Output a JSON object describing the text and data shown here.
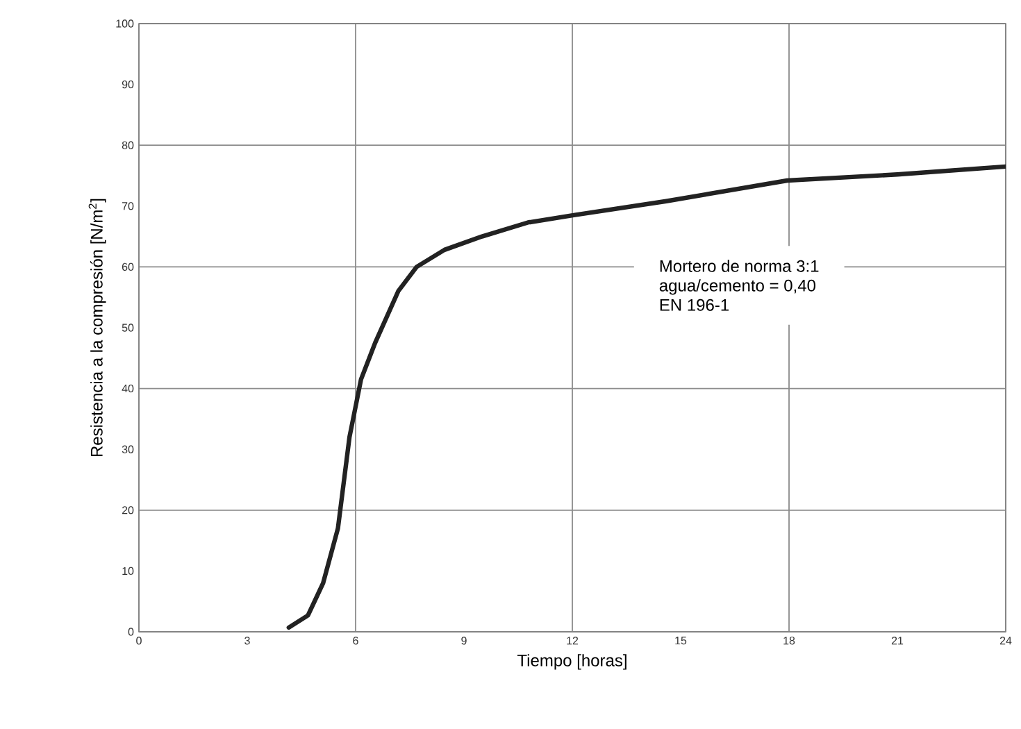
{
  "chart_data": {
    "type": "line",
    "xlabel": "Tiempo [horas]",
    "ylabel": "Resistencia a la compresión [N/m$^{2}$]",
    "x": [
      4.15,
      4.68,
      5.1,
      5.51,
      5.83,
      6.15,
      6.54,
      7.18,
      7.69,
      8.46,
      9.5,
      10.77,
      12.04,
      14.6,
      17.95,
      21,
      24
    ],
    "series": [
      {
        "color": "#222222",
        "values": [
          0.7,
          2.7,
          8,
          17,
          32,
          41.5,
          47.5,
          56,
          60,
          62.8,
          65,
          67.3,
          68.5,
          70.8,
          74.2,
          75.2,
          76.5
        ]
      }
    ],
    "xlim": [
      0,
      24
    ],
    "ylim": [
      0,
      100
    ],
    "xticks": [
      0,
      3,
      6,
      9,
      12,
      15,
      18,
      21,
      24
    ],
    "yticks": [
      0,
      10,
      20,
      30,
      40,
      50,
      60,
      70,
      80,
      90,
      100
    ],
    "grid": true,
    "marker": "none",
    "line_style": "solid",
    "annotations": [
      "Mortero de norma 3:1",
      "agua/cemento = 0,40",
      "EN 196-1"
    ]
  }
}
